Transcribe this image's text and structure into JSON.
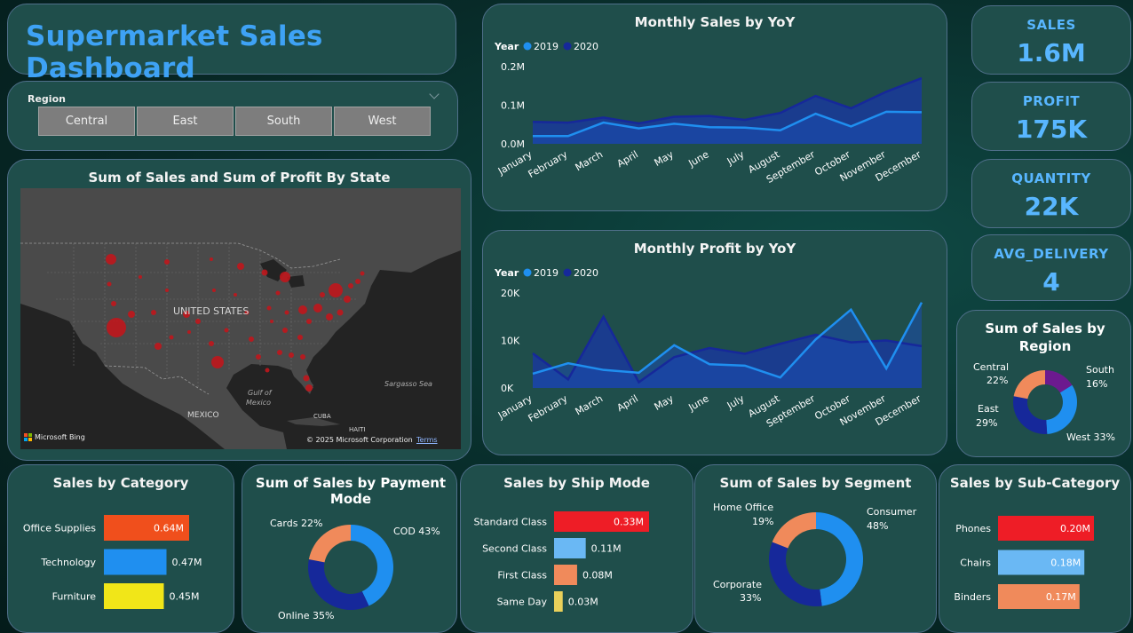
{
  "title": "Supermarket Sales Dashboard",
  "slicer": {
    "title": "Region",
    "options": [
      "Central",
      "East",
      "South",
      "West"
    ]
  },
  "kpis": [
    {
      "label": "SALES",
      "value": "1.6M"
    },
    {
      "label": "PROFIT",
      "value": "175K"
    },
    {
      "label": "QUANTITY",
      "value": "22K"
    },
    {
      "label": "AVG_DELIVERY",
      "value": "4"
    }
  ],
  "map": {
    "title": "Sum of Sales and Sum of Profit By State",
    "labels": {
      "country": "UNITED STATES",
      "mexico": "MEXICO",
      "gulf": "Gulf of",
      "gulf2": "Mexico",
      "sargasso": "Sargasso Sea",
      "cuba": "CUBA",
      "haiti": "HAITI",
      "bing": "Microsoft Bing",
      "copyright": "© 2025 Microsoft Corporation",
      "terms": "Terms"
    }
  },
  "colors": {
    "y2019": "#1f8ff0",
    "y2020": "#16289a",
    "office_supplies": "#f04f1c",
    "technology": "#1f8ff0",
    "furniture": "#f1e618",
    "standard": "#ee1d26",
    "second": "#6ab8f4",
    "first": "#f08a5b",
    "sameday": "#e9d05a",
    "purple": "#6c1a8f"
  },
  "chart_data": [
    {
      "id": "sales_yoy",
      "type": "area",
      "title": "Monthly Sales by YoY",
      "legend_title": "Year",
      "categories": [
        "January",
        "February",
        "March",
        "April",
        "May",
        "June",
        "July",
        "August",
        "September",
        "October",
        "November",
        "December"
      ],
      "yticks": [
        "0.0M",
        "0.1M",
        "0.2M"
      ],
      "ylim": [
        0,
        0.2
      ],
      "series": [
        {
          "name": "2019",
          "values": [
            0.02,
            0.02,
            0.055,
            0.04,
            0.052,
            0.043,
            0.042,
            0.035,
            0.078,
            0.045,
            0.083,
            0.082
          ]
        },
        {
          "name": "2020",
          "values": [
            0.057,
            0.055,
            0.068,
            0.053,
            0.07,
            0.072,
            0.062,
            0.08,
            0.124,
            0.092,
            0.135,
            0.17
          ]
        }
      ]
    },
    {
      "id": "profit_yoy",
      "type": "area",
      "title": "Monthly Profit by YoY",
      "legend_title": "Year",
      "categories": [
        "January",
        "February",
        "March",
        "April",
        "May",
        "June",
        "July",
        "August",
        "September",
        "October",
        "November",
        "December"
      ],
      "yticks": [
        "0K",
        "10K",
        "20K"
      ],
      "ylim": [
        0,
        20000
      ],
      "series": [
        {
          "name": "2019",
          "values": [
            3000,
            5200,
            3800,
            3200,
            9000,
            5000,
            4700,
            2200,
            10200,
            16500,
            4100,
            18000
          ]
        },
        {
          "name": "2020",
          "values": [
            7300,
            1800,
            15000,
            1200,
            6500,
            8400,
            7200,
            9300,
            11200,
            9600,
            10000,
            8800
          ]
        }
      ]
    },
    {
      "id": "sales_region",
      "type": "pie",
      "title": "Sum of Sales by Region",
      "slices": [
        {
          "name": "West",
          "value": 33,
          "label": "West 33%"
        },
        {
          "name": "East",
          "value": 29,
          "label": "East 29%"
        },
        {
          "name": "Central",
          "value": 22,
          "label": "Central 22%"
        },
        {
          "name": "South",
          "value": 16,
          "label": "South 16%"
        }
      ]
    },
    {
      "id": "sales_category",
      "type": "bar",
      "title": "Sales by Category",
      "categories": [
        "Office Supplies",
        "Technology",
        "Furniture"
      ],
      "values": [
        0.64,
        0.47,
        0.45
      ],
      "value_labels": [
        "0.64M",
        "0.47M",
        "0.45M"
      ]
    },
    {
      "id": "sales_payment",
      "type": "pie",
      "title": "Sum of Sales by Payment Mode",
      "slices": [
        {
          "name": "COD",
          "value": 43,
          "label": "COD 43%"
        },
        {
          "name": "Online",
          "value": 35,
          "label": "Online 35%"
        },
        {
          "name": "Cards",
          "value": 22,
          "label": "Cards 22%"
        }
      ]
    },
    {
      "id": "sales_ship",
      "type": "bar",
      "title": "Sales by Ship Mode",
      "categories": [
        "Standard Class",
        "Second Class",
        "First Class",
        "Same Day"
      ],
      "values": [
        0.33,
        0.11,
        0.08,
        0.03
      ],
      "value_labels": [
        "0.33M",
        "0.11M",
        "0.08M",
        "0.03M"
      ]
    },
    {
      "id": "sales_segment",
      "type": "pie",
      "title": "Sum of Sales by Segment",
      "slices": [
        {
          "name": "Consumer",
          "value": 48,
          "label1": "Consumer",
          "label2": "48%"
        },
        {
          "name": "Corporate",
          "value": 33,
          "label1": "Corporate",
          "label2": "33%"
        },
        {
          "name": "Home Office",
          "value": 19,
          "label1": "Home Office",
          "label2": "19%"
        }
      ]
    },
    {
      "id": "sales_subcat",
      "type": "bar",
      "title": "Sales by Sub-Category",
      "categories": [
        "Phones",
        "Chairs",
        "Binders"
      ],
      "values": [
        0.2,
        0.18,
        0.17
      ],
      "value_labels": [
        "0.20M",
        "0.18M",
        "0.17M"
      ]
    }
  ]
}
